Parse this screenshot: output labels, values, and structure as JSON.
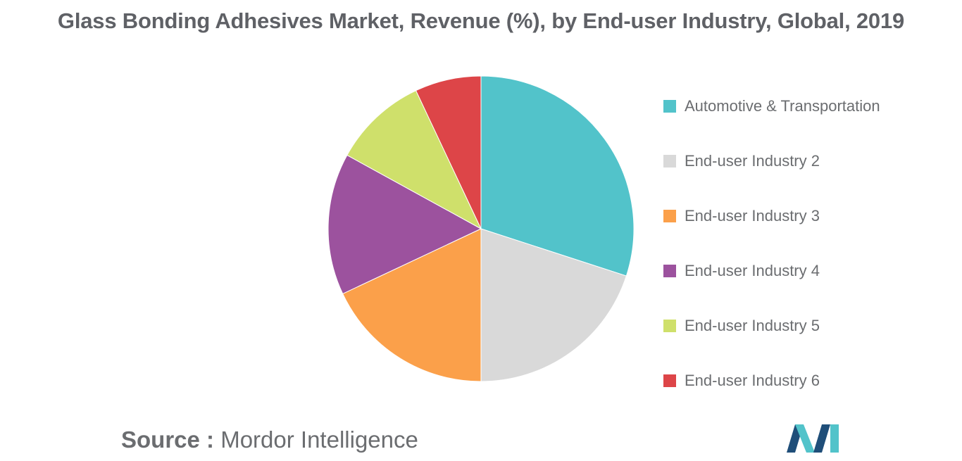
{
  "header": {
    "title": "Glass Bonding Adhesives Market, Revenue (%), by End-user Industry, Global, 2019"
  },
  "chart_data": {
    "type": "pie",
    "title": "Glass Bonding Adhesives Market, Revenue (%), by End-user Industry, Global, 2019",
    "legend_position": "right",
    "start_angle_deg": 0,
    "direction": "clockwise",
    "slices": [
      {
        "label": "Automotive & Transportation",
        "value": 30,
        "color": "#52c3ca"
      },
      {
        "label": "End-user Industry 2",
        "value": 20,
        "color": "#d9d9d9"
      },
      {
        "label": "End-user Industry 3",
        "value": 18,
        "color": "#fba04a"
      },
      {
        "label": "End-user Industry 4",
        "value": 15,
        "color": "#9c529e"
      },
      {
        "label": "End-user Industry 5",
        "value": 10,
        "color": "#cfe06b"
      },
      {
        "label": "End-user Industry 6",
        "value": 7,
        "color": "#dd4548"
      }
    ]
  },
  "footer": {
    "source_label": "Source :",
    "source_name": "Mordor Intelligence"
  },
  "logo": {
    "icon": "mordor-intelligence-logo-icon",
    "colors": [
      "#1f4e79",
      "#52c3ca"
    ]
  }
}
